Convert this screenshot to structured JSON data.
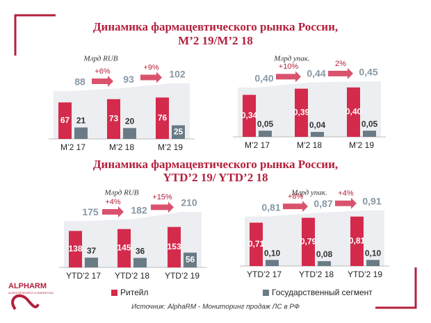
{
  "headings": [
    {
      "line1": "Динамика фармацевтического  рынка России,",
      "line2": "M’2 19/M’2 18"
    },
    {
      "line1": "Динамика фармацевтического  рынка России,",
      "line2": "YTD’2 19/ YTD’2 18"
    }
  ],
  "chart_data": [
    {
      "type": "bar",
      "unit_label": "Млрд RUB",
      "categories": [
        "M’2 17",
        "M’2 18",
        "M’2 19"
      ],
      "series": [
        {
          "color": "#d42a4c",
          "values": [
            67,
            73,
            76
          ]
        },
        {
          "color": "#6b7b86",
          "values": [
            21,
            20,
            25
          ]
        }
      ],
      "totals": {
        "values": [
          88,
          93,
          102
        ]
      },
      "growth_labels": [
        "+6%",
        "+9%"
      ]
    },
    {
      "type": "bar",
      "unit_label": "Млрд упак.",
      "categories": [
        "M’2 17",
        "M’2 18",
        "M’2 19"
      ],
      "series": [
        {
          "color": "#d42a4c",
          "values": [
            0.34,
            0.39,
            0.4
          ],
          "value_labels": [
            "0,34",
            "0,39",
            "0,40"
          ]
        },
        {
          "color": "#6b7b86",
          "values": [
            0.05,
            0.04,
            0.05
          ],
          "value_labels": [
            "0,05",
            "0,04",
            "0,05"
          ]
        }
      ],
      "totals": {
        "values": [
          0.4,
          0.44,
          0.45
        ],
        "value_labels": [
          "0,40",
          "0,44",
          "0,45"
        ]
      },
      "growth_labels": [
        "+10%",
        "2%"
      ]
    },
    {
      "type": "bar",
      "unit_label": "Млрд RUB",
      "categories": [
        "YTD’2 17",
        "YTD’2 18",
        "YTD’2 19"
      ],
      "series": [
        {
          "name": "Ритейл",
          "color": "#d42a4c",
          "values": [
            138,
            145,
            153
          ]
        },
        {
          "name": "Государственный сегмент",
          "color": "#6b7b86",
          "values": [
            37,
            36,
            56
          ]
        }
      ],
      "totals": {
        "values": [
          175,
          182,
          210
        ]
      },
      "growth_labels": [
        "+4%",
        "+15%"
      ]
    },
    {
      "type": "bar",
      "unit_label": "Млрд упак.",
      "categories": [
        "YTD’2 17",
        "YTD’2 18",
        "YTD’2 19"
      ],
      "series": [
        {
          "color": "#d42a4c",
          "values": [
            0.71,
            0.79,
            0.81
          ],
          "value_labels": [
            "0,71",
            "0,79",
            "0,81"
          ]
        },
        {
          "color": "#6b7b86",
          "values": [
            0.1,
            0.08,
            0.1
          ],
          "value_labels": [
            "0,10",
            "0,08",
            "0,10"
          ]
        }
      ],
      "totals": {
        "values": [
          0.81,
          0.87,
          0.91
        ],
        "value_labels": [
          "0,81",
          "0,87",
          "0,91"
        ]
      },
      "growth_labels": [
        "+8%",
        "+4%"
      ]
    }
  ],
  "source": "Источник: AlphaRM - Мониторинг продаж ЛС в РФ",
  "logo": {
    "name": "ALPHARM",
    "tagline": "ALPHA RESEARCH & MARKETING"
  }
}
